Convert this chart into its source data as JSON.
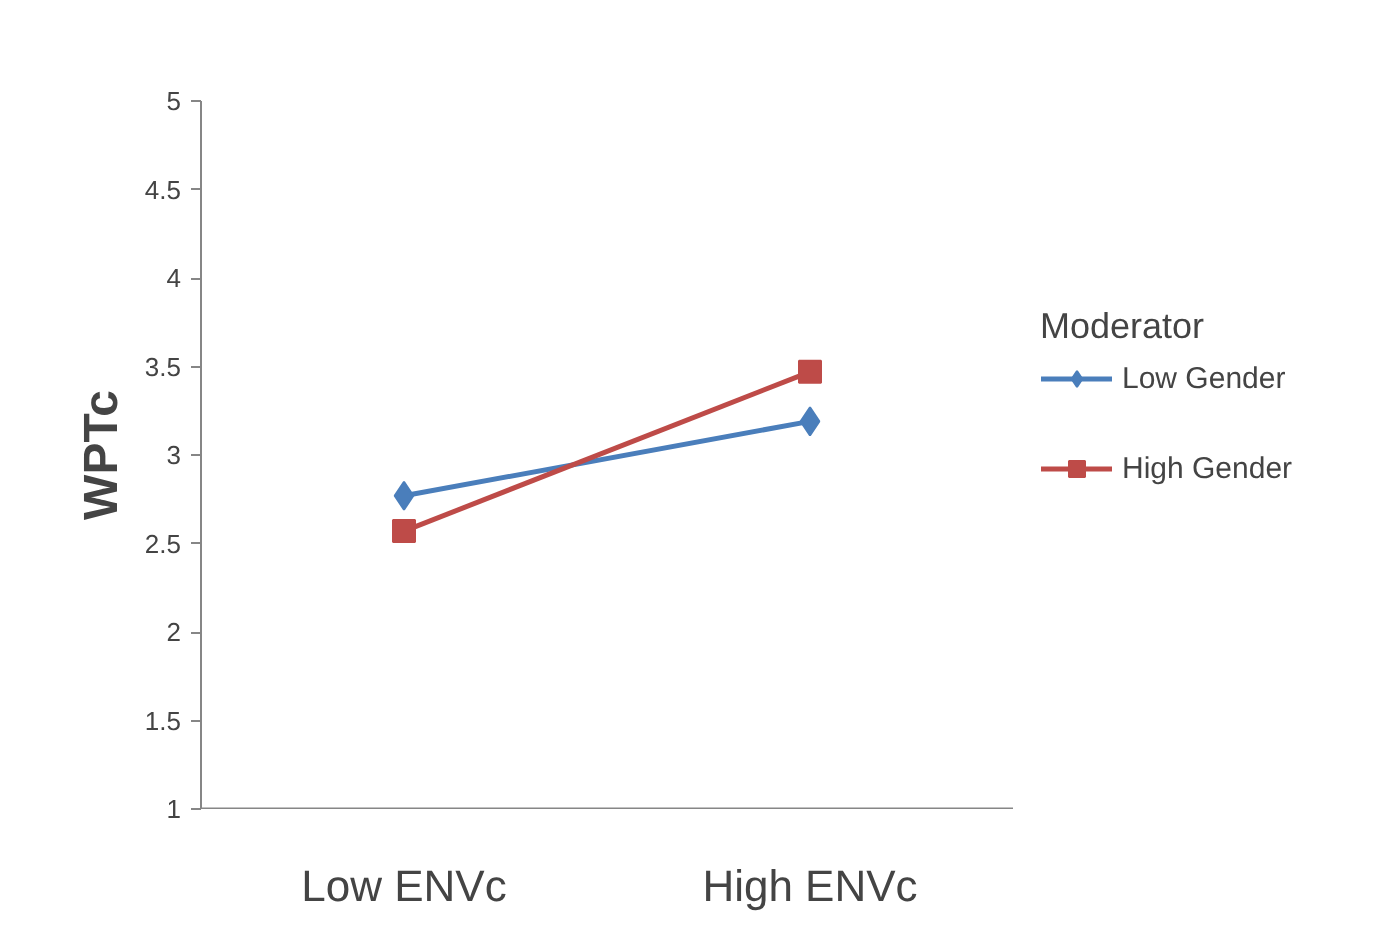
{
  "chart_data": {
    "type": "line",
    "ylabel": "WPTc",
    "legend_title": "Moderator",
    "legend": "right",
    "categories": [
      "Low ENVc",
      "High ENVc"
    ],
    "ylim": [
      1,
      5
    ],
    "yticks": [
      1,
      1.5,
      2,
      2.5,
      3,
      3.5,
      4,
      4.5,
      5
    ],
    "grid": false,
    "series": [
      {
        "name": "Low Gender",
        "color": "#4a7ebb",
        "marker": "diamond",
        "values": [
          2.77,
          3.19
        ]
      },
      {
        "name": "High Gender",
        "color": "#be4b48",
        "marker": "square",
        "values": [
          2.57,
          3.47
        ]
      }
    ]
  }
}
